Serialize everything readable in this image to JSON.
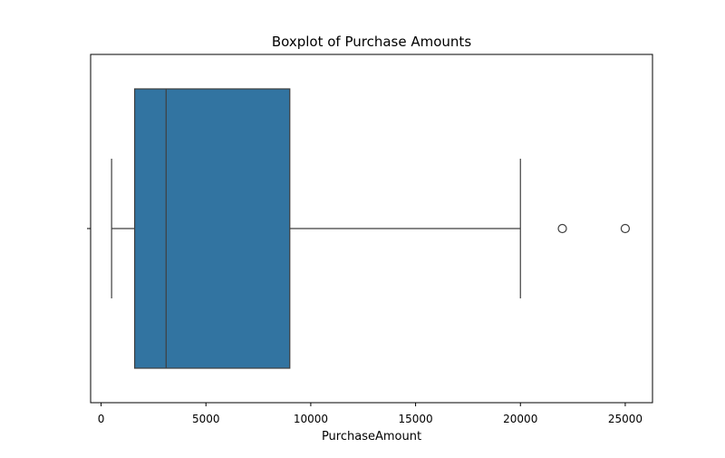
{
  "chart_data": {
    "type": "boxplot",
    "orientation": "horizontal",
    "title": "Boxplot of Purchase Amounts",
    "xlabel": "PurchaseAmount",
    "ylabel": "",
    "xlim": [
      -500,
      26300
    ],
    "xticks": [
      0,
      5000,
      10000,
      15000,
      20000,
      25000
    ],
    "xtick_labels": [
      "0",
      "5000",
      "10000",
      "15000",
      "20000",
      "25000"
    ],
    "grid": false,
    "legend": "none",
    "series": [
      {
        "whisker_low": 500,
        "q1": 1600,
        "median": 3100,
        "q3": 9000,
        "whisker_high": 20000,
        "outliers": [
          22000,
          25000
        ],
        "color": "#3274a1"
      }
    ]
  }
}
